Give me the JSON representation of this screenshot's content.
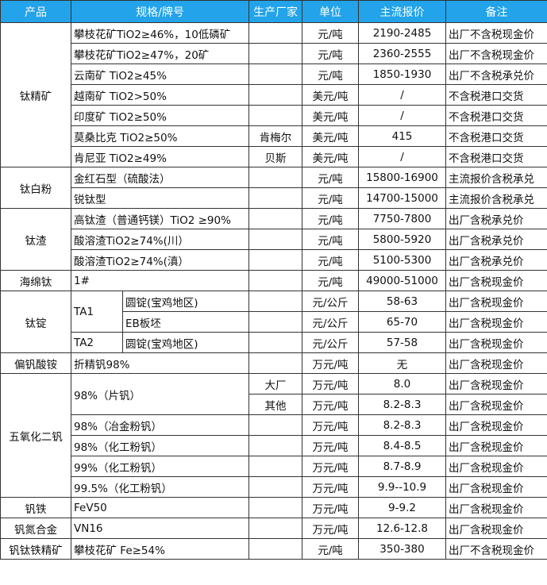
{
  "colors": {
    "header_bg": "#22a3ea",
    "header_text": "#ffffff",
    "border": "#333333"
  },
  "headers": [
    "产品",
    "规格/牌号",
    "生产厂家",
    "单位",
    "主流报价",
    "备注"
  ],
  "groups": [
    {
      "product": "钛精矿",
      "rows": [
        {
          "spec": "攀枝花矿TiO2≥46%，10低磷矿",
          "producer": "",
          "unit": "元/吨",
          "price": "2190-2485",
          "remark": "出厂不含税现金价"
        },
        {
          "spec": "攀枝花矿TiO2≥47%，20矿",
          "producer": "",
          "unit": "元/吨",
          "price": "2360-2555",
          "remark": "出厂不含税现金价"
        },
        {
          "spec": "云南矿 TiO2≥45%",
          "producer": "",
          "unit": "元/吨",
          "price": "1850-1930",
          "remark": "出厂不含税承兑价"
        },
        {
          "spec": "越南矿 TiO2>50%",
          "producer": "",
          "unit": "美元/吨",
          "price": "/",
          "remark": "不含税港口交货"
        },
        {
          "spec": "印度矿 TiO2≥50%",
          "producer": "",
          "unit": "美元/吨",
          "price": "/",
          "remark": "不含税港口交货"
        },
        {
          "spec": "莫桑比克 TiO2≥50%",
          "producer": "肯梅尔",
          "unit": "美元/吨",
          "price": "415",
          "remark": "不含税港口交货"
        },
        {
          "spec": "肯尼亚 TiO2≥49%",
          "producer": "贝斯",
          "unit": "美元/吨",
          "price": "/",
          "remark": "不含税港口交货"
        }
      ]
    },
    {
      "product": "钛白粉",
      "rows": [
        {
          "spec": "金红石型（硫酸法）",
          "producer": "",
          "unit": "元/吨",
          "price": "15800-16900",
          "remark": "主流报价含税承兑"
        },
        {
          "spec": "锐钛型",
          "producer": "",
          "unit": "元/吨",
          "price": "14700-15000",
          "remark": "主流报价含税承兑"
        }
      ]
    },
    {
      "product": "钛渣",
      "rows": [
        {
          "spec": "高钛渣（普通钙镁）TiO2 ≥90%",
          "producer": "",
          "unit": "元/吨",
          "price": "7750-7800",
          "remark": "出厂含税承兑价"
        },
        {
          "spec": "酸溶渣TiO2≥74%(川）",
          "producer": "",
          "unit": "元/吨",
          "price": "5800-5920",
          "remark": "出厂含税承兑价"
        },
        {
          "spec": "酸溶渣TiO2≥74%(滇）",
          "producer": "",
          "unit": "元/吨",
          "price": "5100-5300",
          "remark": "出厂含税承兑价"
        }
      ]
    },
    {
      "product": "海绵钛",
      "rows": [
        {
          "spec": "1#",
          "producer": "",
          "unit": "元/吨",
          "price": "49000-51000",
          "remark": "出厂含税现金价"
        }
      ]
    },
    {
      "product": "钛锭",
      "rows": [
        {
          "grade": "TA1",
          "spec": "圆锭(宝鸡地区)",
          "producer": "",
          "unit": "元/公斤",
          "price": "58-63",
          "remark": "出厂含税现金价"
        },
        {
          "grade": null,
          "spec": "EB板坯",
          "producer": "",
          "unit": "元/公斤",
          "price": "65-70",
          "remark": "出厂含税现金价"
        },
        {
          "grade": "TA2",
          "spec": "圆锭(宝鸡地区)",
          "producer": "",
          "unit": "元/公斤",
          "price": "57-58",
          "remark": "出厂含税现金价"
        }
      ]
    },
    {
      "product": "偏钒酸铵",
      "rows": [
        {
          "spec": "折精钒98%",
          "producer": "",
          "unit": "万元/吨",
          "price": "无",
          "remark": "出厂含税现金价"
        }
      ]
    },
    {
      "product": "五氧化二钒",
      "rows": [
        {
          "spec": "98%（片钒）",
          "producer": "大厂",
          "unit": "万元/吨",
          "price": "8.0",
          "remark": "出厂含税现金价"
        },
        {
          "spec": null,
          "producer": "其他",
          "unit": "万元/吨",
          "price": "8.2-8.3",
          "remark": "出厂含税现金价"
        },
        {
          "spec": "98%（冶金粉钒）",
          "producer": "",
          "unit": "万元/吨",
          "price": "8.2-8.3",
          "remark": "出厂含税现金价"
        },
        {
          "spec": "98%（化工粉钒）",
          "producer": "",
          "unit": "万元/吨",
          "price": "8.4-8.5",
          "remark": "出厂含税现金价"
        },
        {
          "spec": "99%（化工粉钒）",
          "producer": "",
          "unit": "万元/吨",
          "price": "8.7-8.9",
          "remark": "出厂含税现金价"
        },
        {
          "spec": "99.5%（化工粉钒）",
          "producer": "",
          "unit": "万元/吨",
          "price": "9.9--10.9",
          "remark": "出厂含税现金价"
        }
      ]
    },
    {
      "product": "钒铁",
      "rows": [
        {
          "spec": "FeV50",
          "producer": "",
          "unit": "万元/吨",
          "price": "9-9.2",
          "remark": "出厂含税现金价"
        }
      ]
    },
    {
      "product": "钒氮合金",
      "rows": [
        {
          "spec": "VN16",
          "producer": "",
          "unit": "万元/吨",
          "price": "12.6-12.8",
          "remark": "出厂含税现金价"
        }
      ]
    },
    {
      "product": "钒钛铁精矿",
      "rows": [
        {
          "spec": "攀枝花矿 Fe≥54%",
          "producer": "",
          "unit": "元/吨",
          "price": "350-380",
          "remark": "出厂不含税现金价"
        }
      ]
    }
  ]
}
